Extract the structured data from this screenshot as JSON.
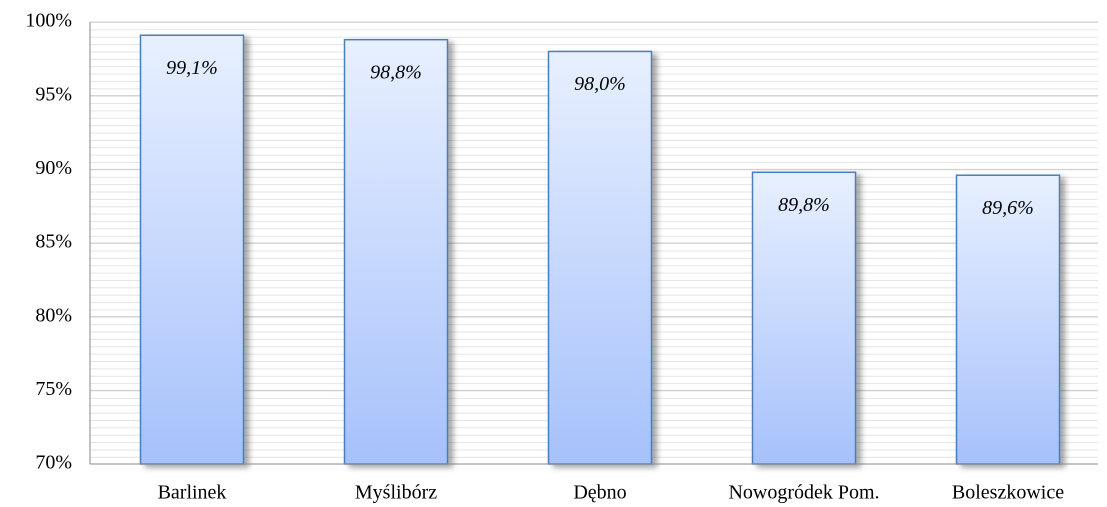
{
  "chart_data": {
    "type": "bar",
    "categories": [
      "Barlinek",
      "Myślibórz",
      "Dębno",
      "Nowogródek Pom.",
      "Boleszkowice"
    ],
    "values": [
      99.1,
      98.8,
      98.0,
      89.8,
      89.6
    ],
    "value_labels": [
      "99,1%",
      "98,8%",
      "98,0%",
      "89,8%",
      "89,6%"
    ],
    "color": "#a6c1fb",
    "ylim": [
      70,
      100
    ],
    "yticks": [
      {
        "value": 70,
        "label": "70%"
      },
      {
        "value": 75,
        "label": "75%"
      },
      {
        "value": 80,
        "label": "80%"
      },
      {
        "value": 85,
        "label": "85%"
      },
      {
        "value": 90,
        "label": "90%"
      },
      {
        "value": 95,
        "label": "95%"
      },
      {
        "value": 100,
        "label": "100%"
      }
    ],
    "grid": true
  }
}
